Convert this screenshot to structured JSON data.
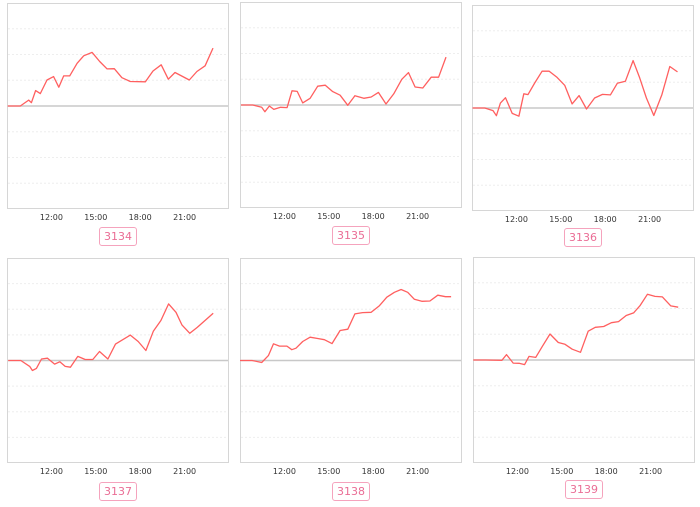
{
  "colors": {
    "line": "#ff5f5f",
    "baseline": "#c8c8c8",
    "grid": "#eeeeee",
    "frame": "#d6d6d6",
    "badge": "#ea6d95",
    "badge_border": "#f5a3bd"
  },
  "chart_data": [
    {
      "type": "line",
      "label": "3134",
      "xticks": [
        "12:00",
        "15:00",
        "18:00",
        "21:00"
      ],
      "xlim": [
        "09:00",
        "24:00"
      ],
      "ylim": [
        -4,
        4
      ],
      "grid": true,
      "x": [
        "9:03",
        "9:54",
        "10:28",
        "10:39",
        "10:56",
        "11:15",
        "11:42",
        "12:09",
        "12:30",
        "12:50",
        "13:14",
        "13:44",
        "14:11",
        "14:45",
        "15:16",
        "15:46",
        "16:15",
        "16:46",
        "17:20",
        "18:21",
        "18:52",
        "19:25",
        "19:54",
        "20:21",
        "21:19",
        "21:50",
        "22:23",
        "22:55"
      ],
      "y": [
        0,
        0,
        0.23,
        0.13,
        0.6,
        0.48,
        1.01,
        1.14,
        0.73,
        1.17,
        1.17,
        1.66,
        1.95,
        2.08,
        1.73,
        1.44,
        1.45,
        1.1,
        0.95,
        0.94,
        1.36,
        1.6,
        1.04,
        1.3,
        1.01,
        1.34,
        1.56,
        2.25
      ]
    },
    {
      "type": "line",
      "label": "3135",
      "xticks": [
        "12:00",
        "15:00",
        "18:00",
        "21:00"
      ],
      "xlim": [
        "09:00",
        "24:00"
      ],
      "ylim": [
        -4,
        4
      ],
      "grid": true,
      "x": [
        "9:04",
        "9:52",
        "10:28",
        "10:41",
        "10:59",
        "11:17",
        "11:44",
        "12:11",
        "12:31",
        "12:52",
        "13:14",
        "13:44",
        "14:15",
        "14:46",
        "15:16",
        "15:46",
        "16:17",
        "16:46",
        "17:22",
        "17:52",
        "18:21",
        "18:52",
        "19:23",
        "19:56",
        "20:23",
        "20:50",
        "21:21",
        "21:55",
        "22:25",
        "22:55"
      ],
      "y": [
        0,
        0,
        -0.09,
        -0.26,
        -0.04,
        -0.17,
        -0.09,
        -0.1,
        0.55,
        0.53,
        0.08,
        0.26,
        0.73,
        0.77,
        0.52,
        0.38,
        -0.01,
        0.36,
        0.26,
        0.31,
        0.49,
        0.04,
        0.43,
        1.0,
        1.26,
        0.7,
        0.66,
        1.08,
        1.08,
        1.86
      ]
    },
    {
      "type": "line",
      "label": "3136",
      "xticks": [
        "12:00",
        "15:00",
        "18:00",
        "21:00"
      ],
      "xlim": [
        "09:00",
        "24:00"
      ],
      "ylim": [
        -4,
        4
      ],
      "grid": true,
      "x": [
        "9:02",
        "9:52",
        "10:25",
        "10:39",
        "10:55",
        "11:16",
        "11:43",
        "12:10",
        "12:30",
        "12:47",
        "13:14",
        "13:44",
        "14:13",
        "14:45",
        "15:16",
        "15:46",
        "16:14",
        "16:44",
        "17:17",
        "17:49",
        "18:21",
        "18:49",
        "19:22",
        "19:53",
        "20:20",
        "20:47",
        "21:17",
        "21:50",
        "22:22",
        "22:53"
      ],
      "y": [
        0,
        0,
        -0.1,
        -0.3,
        0.19,
        0.4,
        -0.21,
        -0.32,
        0.55,
        0.52,
        0.97,
        1.43,
        1.43,
        1.19,
        0.88,
        0.16,
        0.48,
        -0.04,
        0.39,
        0.53,
        0.51,
        0.96,
        1.04,
        1.84,
        1.17,
        0.39,
        -0.29,
        0.52,
        1.61,
        1.4
      ]
    },
    {
      "type": "line",
      "label": "3137",
      "xticks": [
        "12:00",
        "15:00",
        "18:00",
        "21:00"
      ],
      "xlim": [
        "09:00",
        "24:00"
      ],
      "ylim": [
        -4,
        4
      ],
      "grid": true,
      "x": [
        "9:05",
        "9:56",
        "10:32",
        "10:43",
        "10:59",
        "11:20",
        "11:44",
        "12:13",
        "12:34",
        "12:56",
        "13:17",
        "13:47",
        "14:17",
        "14:48",
        "15:15",
        "15:49",
        "16:20",
        "17:20",
        "17:52",
        "18:23",
        "18:53",
        "19:24",
        "19:55",
        "20:25",
        "20:49",
        "21:21",
        "21:52",
        "22:56"
      ],
      "y": [
        0,
        0,
        -0.23,
        -0.39,
        -0.31,
        0.06,
        0.09,
        -0.14,
        -0.05,
        -0.23,
        -0.26,
        0.16,
        0.04,
        0.04,
        0.35,
        0.06,
        0.64,
        0.99,
        0.74,
        0.39,
        1.14,
        1.56,
        2.21,
        1.88,
        1.39,
        1.06,
        1.3,
        1.84
      ]
    },
    {
      "type": "line",
      "label": "3138",
      "xticks": [
        "12:00",
        "15:00",
        "18:00",
        "21:00"
      ],
      "xlim": [
        "09:00",
        "24:00"
      ],
      "ylim": [
        -4,
        4
      ],
      "grid": true,
      "x": [
        "9:00",
        "9:49",
        "10:28",
        "10:55",
        "11:16",
        "11:40",
        "12:10",
        "12:30",
        "12:47",
        "13:14",
        "13:44",
        "14:15",
        "14:42",
        "15:13",
        "15:46",
        "16:17",
        "16:46",
        "17:17",
        "17:52",
        "18:25",
        "18:55",
        "19:26",
        "19:53",
        "20:20",
        "20:47",
        "21:17",
        "21:50",
        "22:22",
        "22:53",
        "23:16"
      ],
      "y": [
        0,
        0,
        -0.08,
        0.19,
        0.65,
        0.56,
        0.56,
        0.42,
        0.48,
        0.74,
        0.91,
        0.86,
        0.81,
        0.66,
        1.17,
        1.22,
        1.82,
        1.87,
        1.88,
        2.14,
        2.47,
        2.66,
        2.77,
        2.66,
        2.39,
        2.31,
        2.32,
        2.55,
        2.49,
        2.49
      ]
    },
    {
      "type": "line",
      "label": "3139",
      "xticks": [
        "12:00",
        "15:00",
        "18:00",
        "21:00"
      ],
      "xlim": [
        "09:00",
        "24:00"
      ],
      "ylim": [
        -4,
        4
      ],
      "grid": true,
      "x": [
        "9:01",
        "9:52",
        "10:57",
        "11:16",
        "11:43",
        "12:07",
        "12:29",
        "12:47",
        "13:14",
        "13:41",
        "14:12",
        "14:46",
        "15:13",
        "15:42",
        "16:16",
        "16:47",
        "17:16",
        "17:50",
        "18:21",
        "18:50",
        "19:21",
        "19:51",
        "20:18",
        "20:47",
        "21:18",
        "21:48",
        "22:22",
        "22:52"
      ],
      "y": [
        0,
        0,
        -0.01,
        0.21,
        -0.12,
        -0.13,
        -0.18,
        0.14,
        0.1,
        0.53,
        1.01,
        0.68,
        0.61,
        0.42,
        0.3,
        1.12,
        1.27,
        1.3,
        1.45,
        1.49,
        1.73,
        1.83,
        2.12,
        2.55,
        2.47,
        2.45,
        2.1,
        2.05
      ]
    }
  ]
}
